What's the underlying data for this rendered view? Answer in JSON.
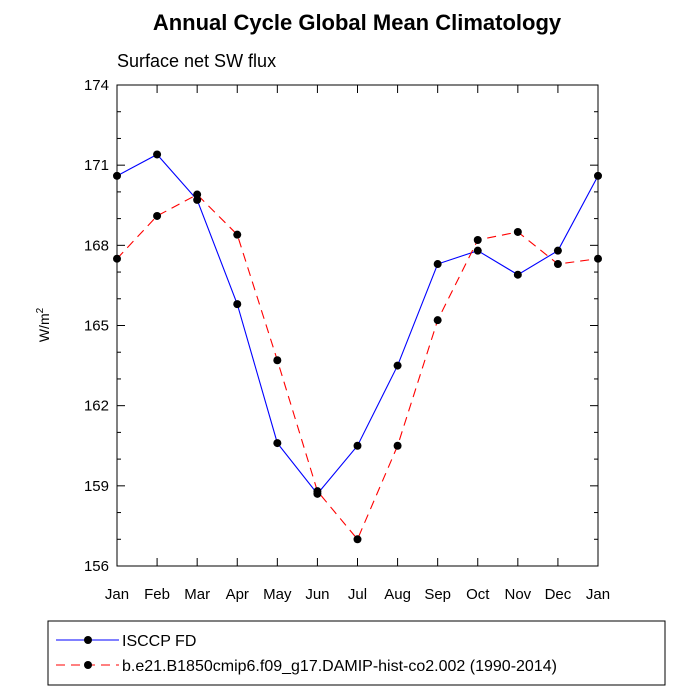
{
  "chart_data": {
    "type": "line",
    "title": "Annual Cycle Global Mean Climatology",
    "subtitle": "Surface net SW flux",
    "xlabel": "",
    "ylabel": "W/m",
    "ylabel_superscript": "2",
    "categories": [
      "Jan",
      "Feb",
      "Mar",
      "Apr",
      "May",
      "Jun",
      "Jul",
      "Aug",
      "Sep",
      "Oct",
      "Nov",
      "Dec",
      "Jan"
    ],
    "ylim": [
      156,
      174
    ],
    "yticks": [
      156,
      159,
      162,
      165,
      168,
      171,
      174
    ],
    "ytick_labels": [
      "156",
      "159",
      "162",
      "165",
      "168",
      "171",
      "174"
    ],
    "grid": false,
    "legend_position": "bottom",
    "series": [
      {
        "name": "ISCCP FD",
        "color": "#0000ff",
        "dash": "solid",
        "values": [
          170.6,
          171.4,
          169.7,
          165.8,
          160.6,
          158.7,
          160.5,
          163.5,
          167.3,
          167.8,
          166.9,
          167.8,
          170.6
        ]
      },
      {
        "name": "b.e21.B1850cmip6.f09_g17.DAMIP-hist-co2.002 (1990-2014)",
        "color": "#ff0000",
        "dash": "dashed",
        "values": [
          167.5,
          169.1,
          169.9,
          168.4,
          163.7,
          158.8,
          157.0,
          160.5,
          165.2,
          168.2,
          168.5,
          167.3,
          167.5
        ]
      }
    ]
  }
}
